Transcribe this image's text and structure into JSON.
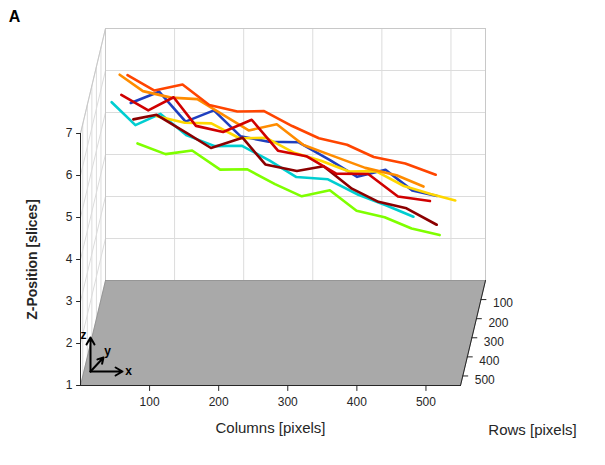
{
  "chart_data": {
    "type": "line3d",
    "panel_label": "A",
    "xlabel": "Columns [pixels]",
    "ylabel": "Rows [pixels]",
    "zlabel": "Z-Position [slices]",
    "triad_labels": [
      "x",
      "y",
      "z"
    ],
    "xlim": [
      0,
      550
    ],
    "xticks": [
      100,
      200,
      300,
      400,
      500
    ],
    "ylim": [
      0,
      550
    ],
    "yticks": [
      100,
      200,
      300,
      400,
      500
    ],
    "zlim": [
      1,
      7
    ],
    "zticks": [
      1,
      2,
      3,
      4,
      5,
      6,
      7
    ],
    "grid": true,
    "series": [
      {
        "color": "#00ced1",
        "x": [
          30,
          65,
          100,
          140,
          180,
          220,
          260,
          300,
          345,
          390,
          430,
          470
        ],
        "y": [
          320,
          330,
          315,
          340,
          330,
          350,
          340,
          360,
          350,
          365,
          355,
          370
        ],
        "z": [
          6.7,
          6.2,
          6.4,
          6.0,
          5.7,
          5.8,
          5.4,
          5.1,
          5.0,
          4.7,
          4.4,
          4.2
        ]
      },
      {
        "color": "#7fff00",
        "x": [
          70,
          110,
          150,
          190,
          230,
          270,
          310,
          350,
          390,
          430,
          470,
          510
        ],
        "y": [
          360,
          350,
          375,
          365,
          385,
          375,
          395,
          385,
          405,
          395,
          410,
          400
        ],
        "z": [
          5.9,
          5.6,
          5.8,
          5.3,
          5.4,
          5.0,
          4.8,
          4.9,
          4.5,
          4.3,
          4.1,
          3.9
        ]
      },
      {
        "color": "#1f3fbf",
        "x": [
          55,
          95,
          135,
          175,
          215,
          255,
          300,
          345,
          385,
          425,
          465,
          500
        ],
        "y": [
          280,
          265,
          290,
          275,
          300,
          285,
          310,
          295,
          315,
          300,
          320,
          305
        ],
        "z": [
          6.5,
          6.7,
          6.1,
          6.3,
          5.8,
          5.6,
          5.7,
          5.2,
          4.9,
          5.0,
          4.6,
          4.4
        ]
      },
      {
        "color": "#ffd700",
        "x": [
          90,
          130,
          170,
          210,
          250,
          290,
          330,
          370,
          410,
          450,
          490,
          525
        ],
        "y": [
          240,
          230,
          255,
          245,
          265,
          255,
          275,
          265,
          285,
          275,
          295,
          285
        ],
        "z": [
          6.0,
          5.8,
          5.9,
          5.5,
          5.6,
          5.2,
          5.1,
          4.8,
          4.9,
          4.5,
          4.4,
          4.2
        ]
      },
      {
        "color": "#ff8c00",
        "x": [
          35,
          70,
          110,
          150,
          185,
          225,
          265,
          305,
          350,
          395,
          440,
          480
        ],
        "y": [
          220,
          240,
          230,
          260,
          250,
          270,
          260,
          280,
          275,
          290,
          285,
          300
        ],
        "z": [
          6.9,
          6.6,
          6.4,
          6.5,
          6.1,
          5.8,
          5.9,
          5.5,
          5.2,
          5.0,
          4.8,
          4.6
        ]
      },
      {
        "color": "#ff4500",
        "x": [
          45,
          85,
          125,
          165,
          205,
          245,
          285,
          325,
          365,
          405,
          450,
          495
        ],
        "y": [
          200,
          215,
          205,
          225,
          215,
          235,
          225,
          245,
          235,
          255,
          245,
          260
        ],
        "z": [
          6.8,
          6.5,
          6.6,
          6.2,
          6.0,
          6.1,
          5.7,
          5.5,
          5.3,
          5.1,
          4.9,
          4.7
        ]
      },
      {
        "color": "#8b0000",
        "x": [
          60,
          95,
          140,
          175,
          220,
          255,
          300,
          340,
          380,
          420,
          460,
          505
        ],
        "y": [
          300,
          320,
          310,
          340,
          330,
          360,
          350,
          370,
          355,
          380,
          370,
          390
        ],
        "z": [
          6.2,
          6.4,
          5.9,
          5.7,
          5.9,
          5.4,
          5.2,
          5.4,
          4.8,
          4.6,
          4.4,
          4.1
        ]
      },
      {
        "color": "#d00000",
        "x": [
          40,
          80,
          115,
          150,
          190,
          230,
          270,
          310,
          355,
          400,
          445,
          490
        ],
        "y": [
          260,
          275,
          250,
          290,
          300,
          280,
          310,
          295,
          320,
          300,
          330,
          310
        ],
        "z": [
          6.6,
          6.3,
          6.5,
          6.0,
          5.9,
          6.1,
          5.5,
          5.3,
          5.0,
          4.9,
          4.5,
          4.3
        ]
      }
    ]
  }
}
